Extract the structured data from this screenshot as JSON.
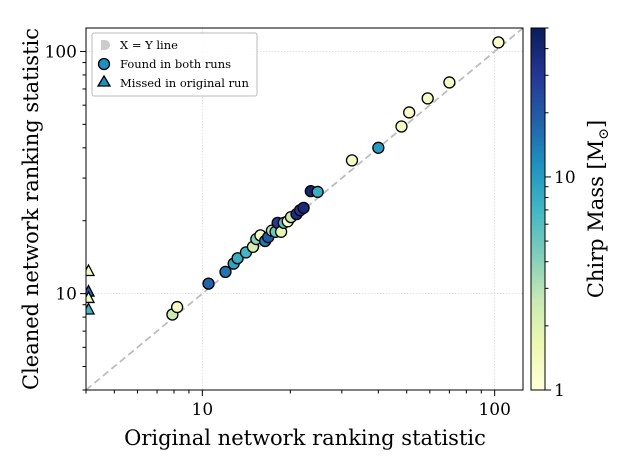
{
  "chart_data": {
    "type": "scatter",
    "xscale": "log",
    "yscale": "log",
    "xlim": [
      4.0,
      125
    ],
    "ylim": [
      4.0,
      125
    ],
    "xlabel": "Original network ranking statistic",
    "ylabel": "Cleaned network ranking statistic",
    "x_ticks": [
      {
        "value": 10,
        "label": "10"
      },
      {
        "value": 100,
        "label": "100"
      }
    ],
    "y_ticks": [
      {
        "value": 10,
        "label": "10"
      },
      {
        "value": 100,
        "label": "100"
      }
    ],
    "grid": true,
    "colorbar": {
      "label": "Chirp Mass [M",
      "label_sub": "⊙",
      "label_close": "]",
      "colormap": "YlGnBu",
      "scale": "log",
      "range": [
        1,
        50
      ],
      "ticks": [
        {
          "value": 1,
          "label": "1"
        },
        {
          "value": 10,
          "label": "10"
        }
      ],
      "stops": [
        "#ffffd9",
        "#edf8b1",
        "#c7e9b4",
        "#7fcdbb",
        "#41b6c4",
        "#1d91c0",
        "#225ea8",
        "#253494",
        "#081d58"
      ]
    },
    "legend": {
      "position": "top-left",
      "entries": [
        {
          "marker": "dashed-line",
          "label": "X = Y line"
        },
        {
          "marker": "circle",
          "label": "Found in both runs"
        },
        {
          "marker": "triangle",
          "label": "Missed in original run"
        }
      ]
    },
    "identity_line": {
      "from": 4.0,
      "to": 125
    },
    "series": [
      {
        "name": "Found in both runs",
        "marker": "circle",
        "points": [
          {
            "x": 7.9,
            "y": 8.2,
            "mass": 2.5
          },
          {
            "x": 8.2,
            "y": 8.8,
            "mass": 1.3
          },
          {
            "x": 10.5,
            "y": 11.0,
            "mass": 18
          },
          {
            "x": 12.0,
            "y": 12.3,
            "mass": 15
          },
          {
            "x": 12.8,
            "y": 13.3,
            "mass": 9
          },
          {
            "x": 13.2,
            "y": 14.0,
            "mass": 8
          },
          {
            "x": 14.1,
            "y": 14.8,
            "mass": 7
          },
          {
            "x": 14.9,
            "y": 15.6,
            "mass": 2.2
          },
          {
            "x": 15.3,
            "y": 16.8,
            "mass": 4
          },
          {
            "x": 15.8,
            "y": 17.4,
            "mass": 1.3
          },
          {
            "x": 16.4,
            "y": 16.5,
            "mass": 14
          },
          {
            "x": 16.8,
            "y": 17.1,
            "mass": 20
          },
          {
            "x": 17.3,
            "y": 18.2,
            "mass": 3
          },
          {
            "x": 17.8,
            "y": 18.0,
            "mass": 5
          },
          {
            "x": 18.1,
            "y": 19.6,
            "mass": 30
          },
          {
            "x": 18.6,
            "y": 18.0,
            "mass": 1.8
          },
          {
            "x": 19.0,
            "y": 19.6,
            "mass": 6
          },
          {
            "x": 19.6,
            "y": 19.9,
            "mass": 1.3
          },
          {
            "x": 20.1,
            "y": 20.7,
            "mass": 2.6
          },
          {
            "x": 21.0,
            "y": 21.3,
            "mass": 35
          },
          {
            "x": 21.6,
            "y": 22.1,
            "mass": 30
          },
          {
            "x": 22.2,
            "y": 22.6,
            "mass": 38
          },
          {
            "x": 23.5,
            "y": 26.5,
            "mass": 40
          },
          {
            "x": 24.8,
            "y": 26.3,
            "mass": 8
          },
          {
            "x": 32.5,
            "y": 35.5,
            "mass": 1.3
          },
          {
            "x": 40.0,
            "y": 40.0,
            "mass": 10
          },
          {
            "x": 48.0,
            "y": 49.0,
            "mass": 1.3
          },
          {
            "x": 51.0,
            "y": 56.0,
            "mass": 1.2
          },
          {
            "x": 59.0,
            "y": 64.0,
            "mass": 1.3
          },
          {
            "x": 70.0,
            "y": 74.5,
            "mass": 1.3
          },
          {
            "x": 103.0,
            "y": 109.0,
            "mass": 1.2
          }
        ]
      },
      {
        "name": "Missed in original run",
        "marker": "triangle",
        "points": [
          {
            "x": 4.08,
            "y": 12.4,
            "mass": 1.4
          },
          {
            "x": 4.08,
            "y": 10.2,
            "mass": 18
          },
          {
            "x": 4.08,
            "y": 9.6,
            "mass": 1.3
          },
          {
            "x": 4.08,
            "y": 8.6,
            "mass": 7
          }
        ]
      }
    ]
  }
}
